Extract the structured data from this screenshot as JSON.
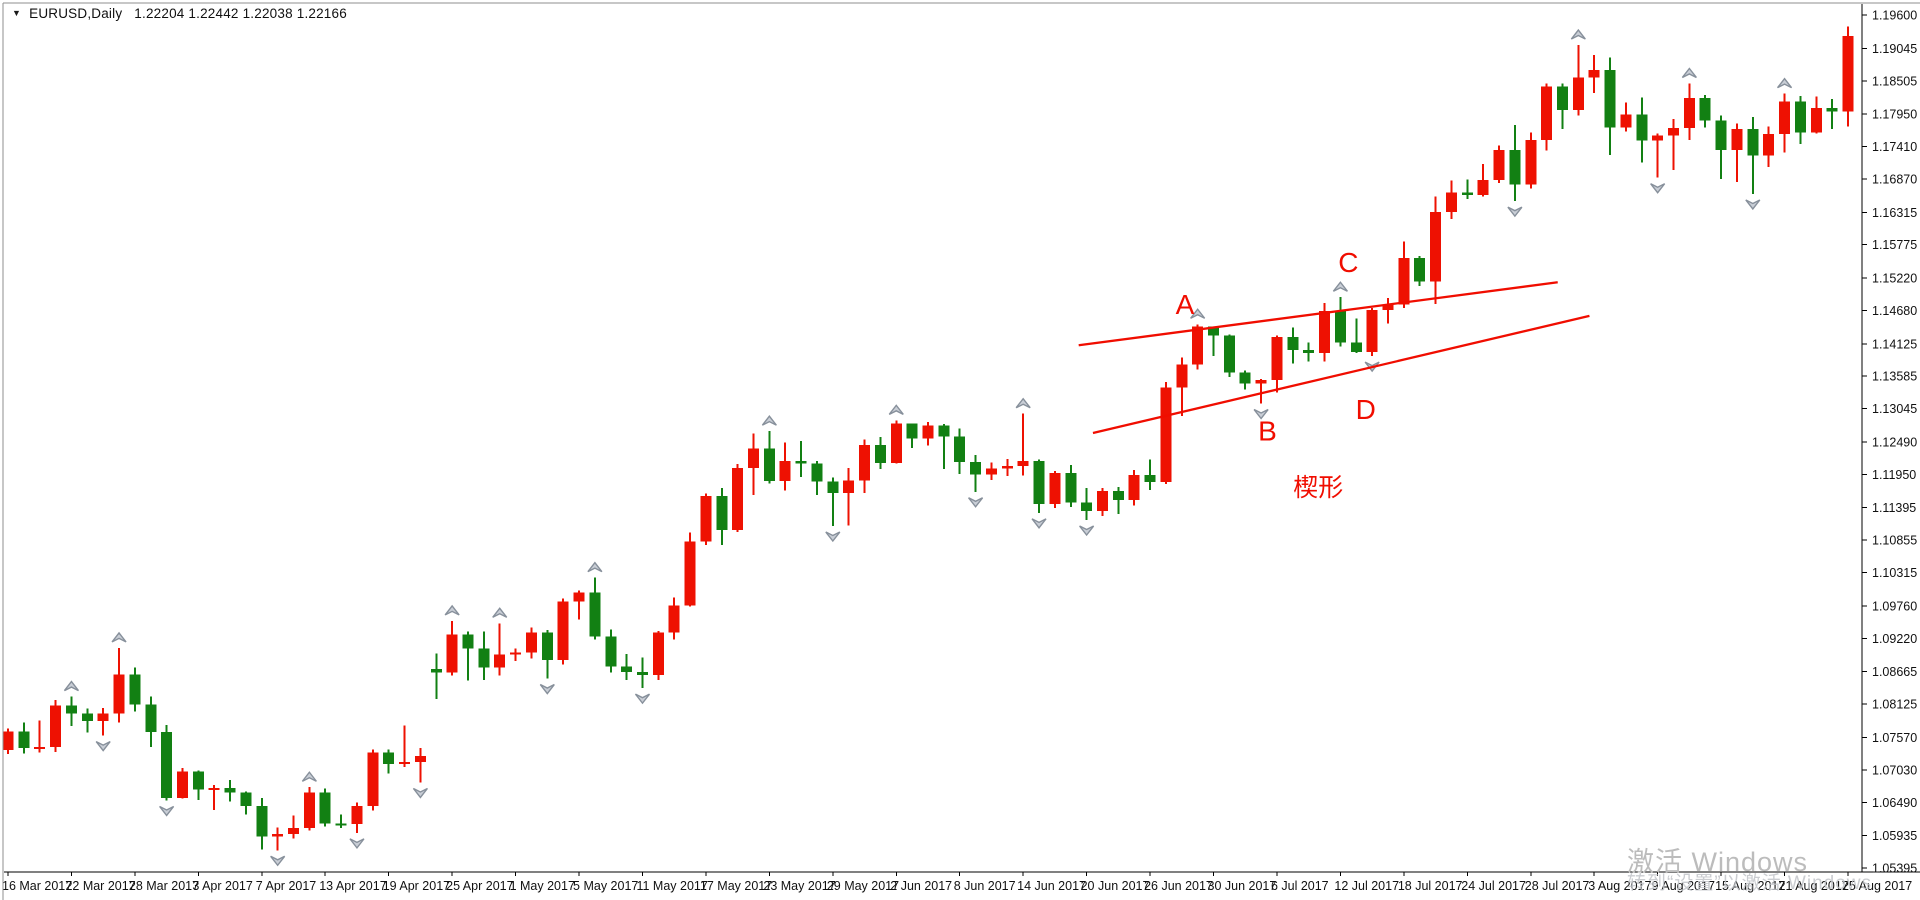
{
  "window": {
    "dropdown_glyph": "▼",
    "symbol_period": "EURUSD,Daily",
    "quote_line": "1.22204 1.22442 1.22038 1.22166"
  },
  "colors": {
    "bull": "#ee1102",
    "bear": "#128013",
    "annotation_red": "#f00d00",
    "axis_line": "#000000",
    "axis_text": "#111111",
    "window_border": "#8f8f8f",
    "fractal_fill": "#c9ced6",
    "fractal_stroke": "#87909b",
    "background": "#ffffff"
  },
  "watermark": {
    "line1": "激活 Windows",
    "line2": "转到“设置”以激活 Windows"
  },
  "price_axis": {
    "labels": [
      "1.19600",
      "1.19045",
      "1.18505",
      "1.17950",
      "1.17410",
      "1.16870",
      "1.16315",
      "1.15775",
      "1.15220",
      "1.14680",
      "1.14125",
      "1.13585",
      "1.13045",
      "1.12490",
      "1.11950",
      "1.11395",
      "1.10855",
      "1.10315",
      "1.09760",
      "1.09220",
      "1.08665",
      "1.08125",
      "1.07570",
      "1.07030",
      "1.06490",
      "1.05935",
      "1.05395"
    ],
    "values": [
      1.196,
      1.19045,
      1.18505,
      1.1795,
      1.1741,
      1.1687,
      1.16315,
      1.15775,
      1.1522,
      1.1468,
      1.14125,
      1.13585,
      1.13045,
      1.1249,
      1.1195,
      1.11395,
      1.10855,
      1.10315,
      1.0976,
      1.0922,
      1.08665,
      1.08125,
      1.0757,
      1.0703,
      1.0649,
      1.05935,
      1.05395
    ]
  },
  "time_axis": {
    "labels": [
      "16 Mar 2017",
      "22 Mar 2017",
      "28 Mar 2017",
      "3 Apr 2017",
      "7 Apr 2017",
      "13 Apr 2017",
      "19 Apr 2017",
      "25 Apr 2017",
      "1 May 2017",
      "5 May 2017",
      "11 May 2017",
      "17 May 2017",
      "23 May 2017",
      "29 May 2017",
      "2 Jun 2017",
      "8 Jun 2017",
      "14 Jun 2017",
      "20 Jun 2017",
      "26 Jun 2017",
      "30 Jun 2017",
      "6 Jul 2017",
      "12 Jul 2017",
      "18 Jul 2017",
      "24 Jul 2017",
      "28 Jul 2017",
      "3 Aug 2017",
      "9 Aug 2017",
      "15 Aug 2017",
      "21 Aug 2017",
      "25 Aug 2017"
    ]
  },
  "chart_data": {
    "type": "candlestick",
    "symbol": "EURUSD",
    "timeframe": "Daily",
    "title": "EURUSD,Daily",
    "ylim": [
      1.05395,
      1.196
    ],
    "grid": false,
    "up_color_meaning": "bullish (red, Chinese convention)",
    "down_color_meaning": "bearish (green)",
    "bars": [
      [
        "16 Mar 2017",
        1.0736,
        1.0772,
        1.0729,
        1.0767
      ],
      [
        "17 Mar 2017",
        1.0767,
        1.0782,
        1.073,
        1.0739
      ],
      [
        "20 Mar 2017",
        1.0739,
        1.0785,
        1.0732,
        1.0741
      ],
      [
        "21 Mar 2017",
        1.0741,
        1.0819,
        1.0733,
        1.081
      ],
      [
        "22 Mar 2017",
        1.081,
        1.0825,
        1.0776,
        1.0797
      ],
      [
        "23 Mar 2017",
        1.0797,
        1.0805,
        1.0765,
        1.0784
      ],
      [
        "24 Mar 2017",
        1.0784,
        1.0806,
        1.076,
        1.0797
      ],
      [
        "27 Mar 2017",
        1.0797,
        1.0906,
        1.0782,
        1.0862
      ],
      [
        "28 Mar 2017",
        1.0862,
        1.0873,
        1.08,
        1.0812
      ],
      [
        "29 Mar 2017",
        1.0812,
        1.0825,
        1.0741,
        1.0766
      ],
      [
        "30 Mar 2017",
        1.0766,
        1.0778,
        1.0652,
        1.0656
      ],
      [
        "31 Mar 2017",
        1.0656,
        1.0706,
        1.0655,
        1.07
      ],
      [
        "3 Apr 2017",
        1.07,
        1.0702,
        1.0653,
        1.067
      ],
      [
        "4 Apr 2017",
        1.067,
        1.0678,
        1.0636,
        1.0673
      ],
      [
        "5 Apr 2017",
        1.0673,
        1.0686,
        1.065,
        1.0665
      ],
      [
        "6 Apr 2017",
        1.0665,
        1.0667,
        1.0629,
        1.0643
      ],
      [
        "7 Apr 2017",
        1.0643,
        1.0656,
        1.057,
        1.0592
      ],
      [
        "10 Apr 2017",
        1.0592,
        1.0607,
        1.0569,
        1.0596
      ],
      [
        "11 Apr 2017",
        1.0596,
        1.0627,
        1.0589,
        1.0606
      ],
      [
        "12 Apr 2017",
        1.0606,
        1.0674,
        1.0602,
        1.0665
      ],
      [
        "13 Apr 2017",
        1.0665,
        1.0672,
        1.0609,
        1.0614
      ],
      [
        "14 Apr 2017",
        1.0614,
        1.0629,
        1.0606,
        1.0613
      ],
      [
        "17 Apr 2017",
        1.0613,
        1.0649,
        1.0598,
        1.0643
      ],
      [
        "18 Apr 2017",
        1.0643,
        1.0737,
        1.0635,
        1.0732
      ],
      [
        "19 Apr 2017",
        1.0732,
        1.0737,
        1.0697,
        1.0713
      ],
      [
        "20 Apr 2017",
        1.0713,
        1.0777,
        1.0708,
        1.0716
      ],
      [
        "21 Apr 2017",
        1.0716,
        1.0739,
        1.0682,
        1.0726
      ],
      [
        "24 Apr 2017",
        1.0871,
        1.0897,
        1.0821,
        1.0865
      ],
      [
        "25 Apr 2017",
        1.0865,
        1.0951,
        1.086,
        1.0928
      ],
      [
        "26 Apr 2017",
        1.0928,
        1.0933,
        1.0852,
        1.0905
      ],
      [
        "27 Apr 2017",
        1.0905,
        1.0933,
        1.0853,
        1.0873
      ],
      [
        "28 Apr 2017",
        1.0873,
        1.0947,
        1.086,
        1.0895
      ],
      [
        "1 May 2017",
        1.0895,
        1.0905,
        1.0884,
        1.0898
      ],
      [
        "2 May 2017",
        1.0898,
        1.094,
        1.0888,
        1.0932
      ],
      [
        "3 May 2017",
        1.0932,
        1.0936,
        1.0855,
        1.0886
      ],
      [
        "4 May 2017",
        1.0886,
        1.0988,
        1.0878,
        1.0983
      ],
      [
        "5 May 2017",
        1.0983,
        1.1002,
        1.0953,
        1.0998
      ],
      [
        "8 May 2017",
        1.0998,
        1.1023,
        1.092,
        1.0925
      ],
      [
        "9 May 2017",
        1.0925,
        1.0937,
        1.0865,
        1.0875
      ],
      [
        "10 May 2017",
        1.0875,
        1.0896,
        1.0853,
        1.0866
      ],
      [
        "11 May 2017",
        1.0866,
        1.089,
        1.0839,
        1.0861
      ],
      [
        "12 May 2017",
        1.0861,
        1.0934,
        1.0853,
        1.0932
      ],
      [
        "15 May 2017",
        1.0932,
        1.099,
        1.092,
        1.0977
      ],
      [
        "16 May 2017",
        1.0977,
        1.1098,
        1.0975,
        1.1083
      ],
      [
        "17 May 2017",
        1.1083,
        1.1163,
        1.1077,
        1.1159
      ],
      [
        "18 May 2017",
        1.1159,
        1.1172,
        1.1077,
        1.1102
      ],
      [
        "19 May 2017",
        1.1102,
        1.1212,
        1.1099,
        1.1206
      ],
      [
        "22 May 2017",
        1.1206,
        1.1263,
        1.1161,
        1.1238
      ],
      [
        "23 May 2017",
        1.1238,
        1.1267,
        1.118,
        1.1184
      ],
      [
        "24 May 2017",
        1.1184,
        1.1248,
        1.1168,
        1.1217
      ],
      [
        "25 May 2017",
        1.1217,
        1.1251,
        1.1191,
        1.1213
      ],
      [
        "26 May 2017",
        1.1213,
        1.1217,
        1.1161,
        1.1183
      ],
      [
        "29 May 2017",
        1.1183,
        1.119,
        1.1109,
        1.1164
      ],
      [
        "30 May 2017",
        1.1164,
        1.1206,
        1.111,
        1.1185
      ],
      [
        "31 May 2017",
        1.1185,
        1.1253,
        1.1164,
        1.1244
      ],
      [
        "1 Jun 2017",
        1.1244,
        1.1257,
        1.1204,
        1.1214
      ],
      [
        "2 Jun 2017",
        1.1214,
        1.1285,
        1.1213,
        1.128
      ],
      [
        "5 Jun 2017",
        1.128,
        1.128,
        1.1239,
        1.1255
      ],
      [
        "6 Jun 2017",
        1.1255,
        1.1282,
        1.1243,
        1.1276
      ],
      [
        "7 Jun 2017",
        1.1276,
        1.1279,
        1.1204,
        1.1258
      ],
      [
        "8 Jun 2017",
        1.1258,
        1.1271,
        1.1196,
        1.1216
      ],
      [
        "9 Jun 2017",
        1.1216,
        1.1227,
        1.1166,
        1.1195
      ],
      [
        "12 Jun 2017",
        1.1195,
        1.1215,
        1.1186,
        1.1205
      ],
      [
        "13 Jun 2017",
        1.1205,
        1.1221,
        1.1192,
        1.1209
      ],
      [
        "14 Jun 2017",
        1.1209,
        1.1296,
        1.1193,
        1.1217
      ],
      [
        "15 Jun 2017",
        1.1217,
        1.122,
        1.1131,
        1.1146
      ],
      [
        "16 Jun 2017",
        1.1146,
        1.1201,
        1.1139,
        1.1197
      ],
      [
        "19 Jun 2017",
        1.1197,
        1.1211,
        1.1141,
        1.1148
      ],
      [
        "20 Jun 2017",
        1.1148,
        1.1172,
        1.1119,
        1.1134
      ],
      [
        "21 Jun 2017",
        1.1134,
        1.1172,
        1.1126,
        1.1167
      ],
      [
        "22 Jun 2017",
        1.1167,
        1.1174,
        1.1129,
        1.1152
      ],
      [
        "23 Jun 2017",
        1.1152,
        1.1202,
        1.1143,
        1.1194
      ],
      [
        "26 Jun 2017",
        1.1194,
        1.122,
        1.1169,
        1.1182
      ],
      [
        "27 Jun 2017",
        1.1182,
        1.1349,
        1.1179,
        1.134
      ],
      [
        "28 Jun 2017",
        1.134,
        1.139,
        1.1292,
        1.1378
      ],
      [
        "29 Jun 2017",
        1.1378,
        1.1445,
        1.137,
        1.1441
      ],
      [
        "30 Jun 2017",
        1.1441,
        1.1441,
        1.1392,
        1.1426
      ],
      [
        "3 Jul 2017",
        1.1426,
        1.1428,
        1.1357,
        1.1365
      ],
      [
        "4 Jul 2017",
        1.1365,
        1.1368,
        1.1336,
        1.1346
      ],
      [
        "5 Jul 2017",
        1.1346,
        1.1354,
        1.1313,
        1.1352
      ],
      [
        "6 Jul 2017",
        1.1352,
        1.1426,
        1.1331,
        1.1424
      ],
      [
        "7 Jul 2017",
        1.1424,
        1.144,
        1.138,
        1.1402
      ],
      [
        "10 Jul 2017",
        1.1402,
        1.1415,
        1.1383,
        1.1397
      ],
      [
        "11 Jul 2017",
        1.1397,
        1.148,
        1.1383,
        1.1467
      ],
      [
        "12 Jul 2017",
        1.1467,
        1.149,
        1.1408,
        1.1415
      ],
      [
        "13 Jul 2017",
        1.1415,
        1.1455,
        1.1397,
        1.1399
      ],
      [
        "14 Jul 2017",
        1.1399,
        1.1472,
        1.1392,
        1.1469
      ],
      [
        "17 Jul 2017",
        1.1469,
        1.1489,
        1.1446,
        1.1478
      ],
      [
        "18 Jul 2017",
        1.1478,
        1.1583,
        1.1472,
        1.1555
      ],
      [
        "19 Jul 2017",
        1.1555,
        1.1559,
        1.1509,
        1.1516
      ],
      [
        "20 Jul 2017",
        1.1516,
        1.1658,
        1.1479,
        1.1632
      ],
      [
        "21 Jul 2017",
        1.1632,
        1.1684,
        1.162,
        1.1664
      ],
      [
        "24 Jul 2017",
        1.1664,
        1.1686,
        1.1654,
        1.166
      ],
      [
        "25 Jul 2017",
        1.166,
        1.1712,
        1.1658,
        1.1685
      ],
      [
        "26 Jul 2017",
        1.1685,
        1.1743,
        1.168,
        1.1735
      ],
      [
        "27 Jul 2017",
        1.1735,
        1.1777,
        1.165,
        1.1678
      ],
      [
        "28 Jul 2017",
        1.1678,
        1.1764,
        1.1671,
        1.1752
      ],
      [
        "31 Jul 2017",
        1.1752,
        1.1846,
        1.1734,
        1.1841
      ],
      [
        "1 Aug 2017",
        1.1841,
        1.1846,
        1.177,
        1.1802
      ],
      [
        "2 Aug 2017",
        1.1802,
        1.191,
        1.1793,
        1.1856
      ],
      [
        "3 Aug 2017",
        1.1856,
        1.1893,
        1.183,
        1.1868
      ],
      [
        "4 Aug 2017",
        1.1868,
        1.1889,
        1.1727,
        1.1773
      ],
      [
        "7 Aug 2017",
        1.1773,
        1.1814,
        1.1766,
        1.1794
      ],
      [
        "8 Aug 2017",
        1.1794,
        1.1823,
        1.1714,
        1.1751
      ],
      [
        "9 Aug 2017",
        1.1751,
        1.1763,
        1.1689,
        1.1759
      ],
      [
        "10 Aug 2017",
        1.1759,
        1.1787,
        1.1702,
        1.1772
      ],
      [
        "11 Aug 2017",
        1.1772,
        1.1846,
        1.1752,
        1.1822
      ],
      [
        "14 Aug 2017",
        1.1822,
        1.1827,
        1.1773,
        1.1784
      ],
      [
        "15 Aug 2017",
        1.1784,
        1.1793,
        1.1687,
        1.1735
      ],
      [
        "16 Aug 2017",
        1.1735,
        1.1779,
        1.1682,
        1.177
      ],
      [
        "17 Aug 2017",
        1.177,
        1.179,
        1.1662,
        1.1726
      ],
      [
        "18 Aug 2017",
        1.1726,
        1.1774,
        1.1707,
        1.1762
      ],
      [
        "21 Aug 2017",
        1.1762,
        1.1829,
        1.1731,
        1.1816
      ],
      [
        "22 Aug 2017",
        1.1816,
        1.1825,
        1.1745,
        1.1764
      ],
      [
        "23 Aug 2017",
        1.1764,
        1.1824,
        1.1763,
        1.1805
      ],
      [
        "24 Aug 2017",
        1.1805,
        1.182,
        1.177,
        1.1799
      ],
      [
        "25 Aug 2017",
        1.1799,
        1.1941,
        1.1774,
        1.1925
      ]
    ],
    "trendlines": [
      {
        "name": "wedge-upper",
        "from": {
          "bar": 67.5,
          "price": 1.141
        },
        "to": {
          "bar": 97.7,
          "price": 1.1515
        }
      },
      {
        "name": "wedge-lower",
        "from": {
          "bar": 68.4,
          "price": 1.1264
        },
        "to": {
          "bar": 99.7,
          "price": 1.1459
        }
      }
    ],
    "annotations": [
      {
        "label": "A",
        "bar": 74.2,
        "price": 1.1477
      },
      {
        "label": "B",
        "bar": 79.4,
        "price": 1.1266
      },
      {
        "label": "C",
        "bar": 84.5,
        "price": 1.1547
      },
      {
        "label": "D",
        "bar": 85.6,
        "price": 1.1302
      }
    ],
    "pattern_label": {
      "text": "楔形",
      "bar": 82.6,
      "price": 1.1174
    },
    "indicator": "Bill Williams Fractals (gray arrows above highs / below lows)"
  }
}
